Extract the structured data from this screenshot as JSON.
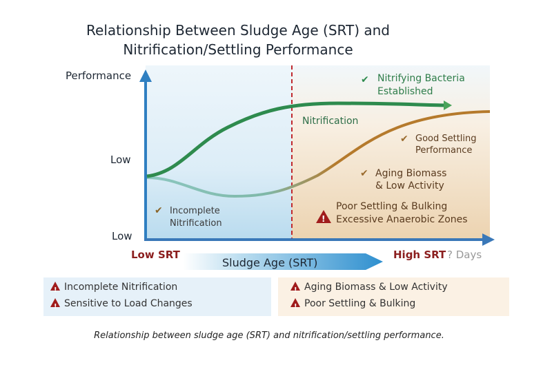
{
  "title_line1": "Relationship Between Sludge Age (SRT) and",
  "title_line2": "Nitrification/Settling Performance",
  "y_axis": {
    "label": "Performance",
    "tick_upper": "Low",
    "tick_lower": "Low"
  },
  "x_axis": {
    "left_label": "Low SRT",
    "center_label": "Sludge Age (SRT)",
    "right_label": "High SRT",
    "unit": "? Days"
  },
  "annotations": {
    "nitrifying_1": "Nitrifying Bacteria",
    "nitrifying_2": "Established",
    "nitrification": "Nitrification",
    "good_settling_1": "Good Settling",
    "good_settling_2": "Performance",
    "aging_1": "Aging Biomass",
    "aging_2": "& Low Activity",
    "poor_1": "Poor Settling & Bulking",
    "poor_2": "Excessive Anaerobic Zones",
    "incomplete_1": "Incomplete",
    "incomplete_2": "Nitrification"
  },
  "left_box": [
    "Incomplete Nitrification",
    "Sensitive to Load Changes"
  ],
  "right_box": [
    "Aging Biomass & Low Activity",
    "Poor Settling & Bulking"
  ],
  "caption": "Relationship between sludge age (SRT) and nitrification/settling performance.",
  "colors": {
    "nitrification": "#2e8b4e",
    "settling": "#b57a2c",
    "axis": "#2f7fc1",
    "threshold": "#c0282d",
    "warning": "#a01c1c"
  },
  "icons": [
    "check-icon",
    "warning-icon"
  ]
}
